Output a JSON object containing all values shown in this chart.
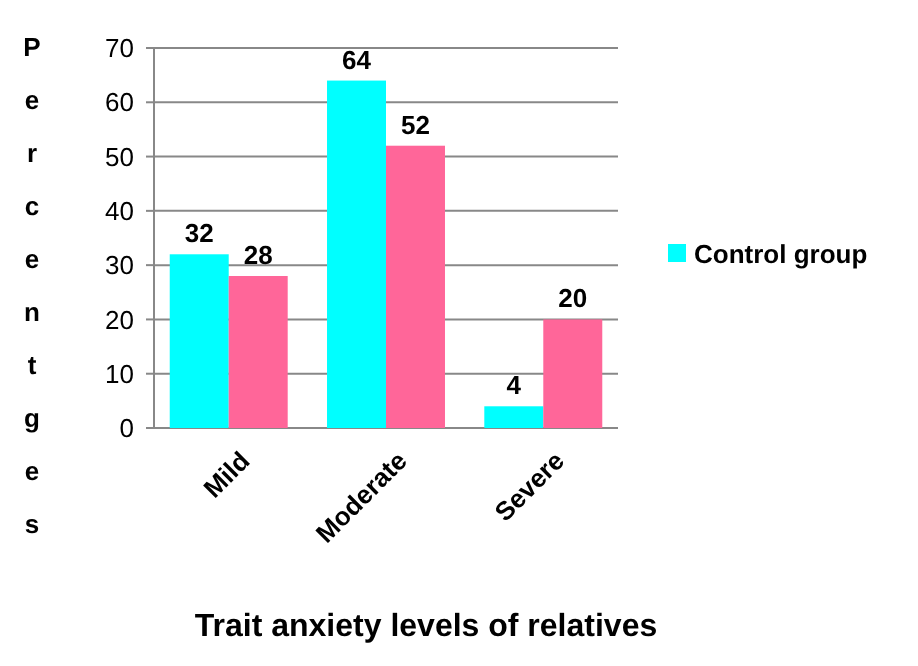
{
  "chart_data": {
    "type": "bar",
    "xlabel": "Trait anxiety levels of relatives",
    "ylabel": "Percentges",
    "categories": [
      "Mild",
      "Moderate",
      "Severe"
    ],
    "series": [
      {
        "name": "Control group",
        "color": "#00ffff",
        "values": [
          32,
          64,
          4
        ]
      },
      {
        "color": "#ff6699",
        "values": [
          28,
          52,
          20
        ]
      }
    ],
    "ylim": [
      0,
      70
    ],
    "yticks": [
      0,
      10,
      20,
      30,
      40,
      50,
      60,
      70
    ],
    "grid": "y",
    "data_labels": true,
    "legend": "right"
  }
}
